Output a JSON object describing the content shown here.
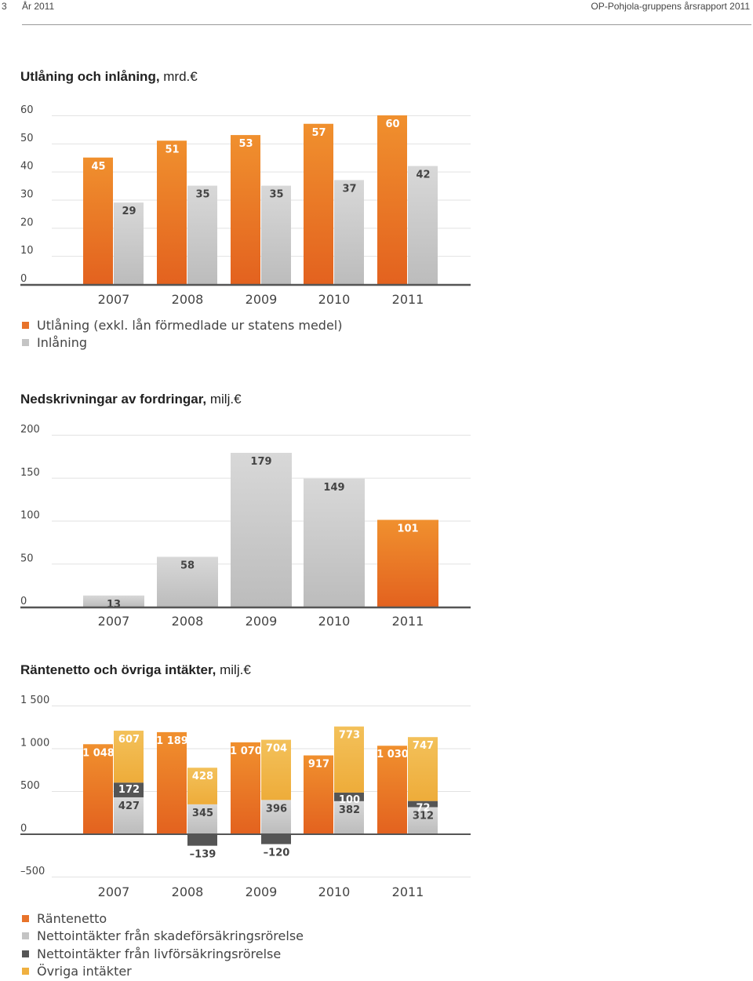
{
  "header": {
    "page_number": "3",
    "year": "År 2011",
    "document": "OP-Pohjola-gruppens årsrapport 2011"
  },
  "colors": {
    "orange": "#e8732a",
    "grey": "#c4c4c4",
    "dark": "#555555",
    "yellow": "#f0b040"
  },
  "chart_data": [
    {
      "id": "lending",
      "type": "bar",
      "title_bold": "Utlåning och inlåning,",
      "title_unit": " mrd.€",
      "categories": [
        "2007",
        "2008",
        "2009",
        "2010",
        "2011"
      ],
      "ylim": [
        0,
        60
      ],
      "yticks": [
        0,
        10,
        20,
        30,
        40,
        50,
        60
      ],
      "series": [
        {
          "name": "Utlåning (exkl. lån förmedlade ur statens medel)",
          "color": "orange",
          "values": [
            45,
            51,
            53,
            57,
            60
          ]
        },
        {
          "name": "Inlåning",
          "color": "grey",
          "values": [
            29,
            35,
            35,
            37,
            42
          ]
        }
      ]
    },
    {
      "id": "impairments",
      "type": "bar",
      "title_bold": "Nedskrivningar av fordringar,",
      "title_unit": " milj.€",
      "categories": [
        "2007",
        "2008",
        "2009",
        "2010",
        "2011"
      ],
      "ylim": [
        0,
        200
      ],
      "yticks": [
        0,
        50,
        100,
        150,
        200
      ],
      "values": [
        13,
        58,
        179,
        149,
        101
      ],
      "bar_colors": [
        "grey",
        "grey",
        "grey",
        "grey",
        "orange"
      ]
    },
    {
      "id": "income",
      "type": "bar",
      "title_bold": "Räntenetto och övriga intäkter,",
      "title_unit": " milj.€",
      "categories": [
        "2007",
        "2008",
        "2009",
        "2010",
        "2011"
      ],
      "ylim": [
        -500,
        1500
      ],
      "yticks": [
        -500,
        0,
        500,
        1000,
        1500
      ],
      "ytick_labels": [
        "–500",
        "0",
        "500",
        "1 000",
        "1 500"
      ],
      "series": [
        {
          "name": "Räntenetto",
          "color": "orange",
          "values": [
            1048,
            1189,
            1070,
            917,
            1030
          ],
          "labels": [
            "1 048",
            "1 189",
            "1 070",
            "917",
            "1 030"
          ]
        },
        {
          "name": "Nettointäkter från skadeförsäkringsrörelse",
          "color": "grey",
          "values": [
            427,
            345,
            396,
            382,
            312
          ],
          "labels": [
            "427",
            "345",
            "396",
            "382",
            "312"
          ]
        },
        {
          "name": "Nettointäkter från livförsäkringsrörelse",
          "color": "dark",
          "values": [
            172,
            -139,
            -120,
            100,
            72
          ],
          "labels": [
            "172",
            "–139",
            "–120",
            "100",
            "72"
          ]
        },
        {
          "name": "Övriga intäkter",
          "color": "yellow",
          "values": [
            607,
            428,
            704,
            773,
            747
          ],
          "labels": [
            "607",
            "428",
            "704",
            "773",
            "747"
          ]
        }
      ]
    }
  ]
}
